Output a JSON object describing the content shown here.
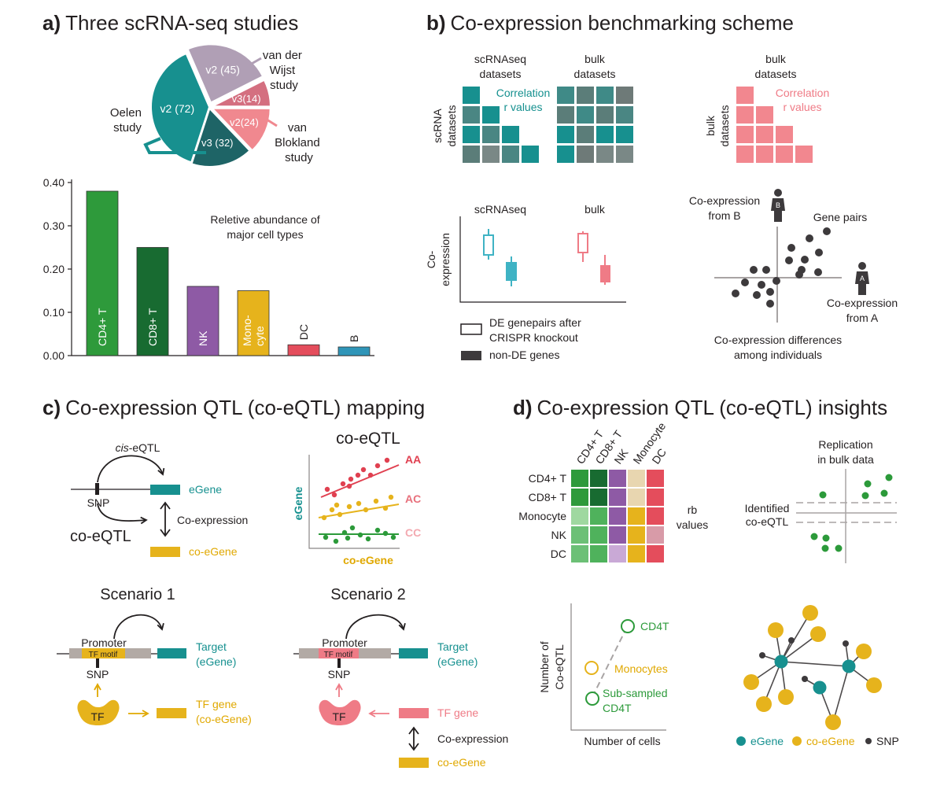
{
  "panel_a": {
    "title_letter": "a)",
    "title": "Three scRNA-seq studies",
    "pie": {
      "slices": [
        {
          "label": "v2 (72)",
          "value": 72,
          "color": "#17908f"
        },
        {
          "label": "v2 (45)",
          "value": 45,
          "color": "#b09fb5"
        },
        {
          "label": "v3(14)",
          "value": 14,
          "color": "#d46f80"
        },
        {
          "label": "v2(24)",
          "value": 24,
          "color": "#f0888f"
        },
        {
          "label": "v3 (32)",
          "value": 32,
          "color": "#1e6466"
        }
      ],
      "study_oelen": [
        "Oelen",
        "study"
      ],
      "study_vanderwijst": [
        "van der",
        "Wijst",
        "study"
      ],
      "study_vanblokland": [
        "van",
        "Blokland",
        "study"
      ]
    }
  },
  "chart_data": {
    "type": "bar",
    "title": "Reletive abundance of major cell types",
    "title_lines": [
      "Reletive abundance of",
      "major cell types"
    ],
    "categories": [
      "CD4+ T",
      "CD8+ T",
      "NK",
      "Mono-cyte",
      "DC",
      "B"
    ],
    "category_lines": [
      [
        "CD4+ T"
      ],
      [
        "CD8+ T"
      ],
      [
        "NK"
      ],
      [
        "Mono-",
        "cyte"
      ],
      [
        "DC"
      ],
      [
        "B"
      ]
    ],
    "values": [
      0.38,
      0.25,
      0.16,
      0.15,
      0.025,
      0.02
    ],
    "colors": [
      "#2e9a3b",
      "#186b31",
      "#8e5aa5",
      "#e6b31c",
      "#e44d5c",
      "#2f95b8"
    ],
    "yticks": [
      "0.00",
      "0.10",
      "0.20",
      "0.30",
      "0.40"
    ],
    "ylim": [
      0,
      0.4
    ],
    "xlabel": "",
    "ylabel": ""
  },
  "panel_b": {
    "title_letter": "b)",
    "title": "Co-expression benchmarking scheme",
    "sc_header": [
      "scRNAseq",
      "datasets"
    ],
    "bulk_header": [
      "bulk",
      "datasets"
    ],
    "bulk_header2": [
      "bulk",
      "datasets"
    ],
    "scrna_side": [
      "scRNA",
      "datasets"
    ],
    "bulk_side": [
      "bulk",
      "datasets"
    ],
    "corr_teal": [
      "Correlation",
      "r values"
    ],
    "corr_pink": [
      "Correlation",
      "r values"
    ],
    "box_sc_label": "scRNAseq",
    "box_bulk_label": "bulk",
    "coexp_axis": [
      "Co-",
      "expression"
    ],
    "legend_de": [
      "DE genepairs after",
      "CRISPR knockout"
    ],
    "legend_nonde": "non-DE genes",
    "coexp_b": [
      "Co-expression",
      "from B"
    ],
    "coexp_a": [
      "Co-expression",
      "from A"
    ],
    "gene_pairs": "Gene pairs",
    "person_a": "A",
    "person_b": "B",
    "diff_caption": [
      "Co-expression differences",
      "among individuals"
    ]
  },
  "panel_c": {
    "title_letter": "c)",
    "title": "Co-expression QTL (co-eQTL) mapping",
    "cis_eqtl_cis": "cis",
    "cis_eqtl_rest": "-eQTL",
    "snp": "SNP",
    "egene": "eGene",
    "coexpression": "Co-expression",
    "coeqtl": "co-eQTL",
    "coegene": "co-eGene",
    "scatter_title": "co-eQTL",
    "scatter_y": "eGene",
    "scatter_x": "co-eGene",
    "genotypes": [
      "AA",
      "AC",
      "CC"
    ],
    "scenario1": "Scenario 1",
    "scenario2": "Scenario 2",
    "promoter": "Promoter",
    "tf_motif": "TF motif",
    "target": [
      "Target",
      "(eGene)"
    ],
    "tf": "TF",
    "tf_gene_coegene": [
      "TF gene",
      "(co-eGene)"
    ],
    "tf_gene": "TF gene",
    "legend_coexpression": "Co-expression",
    "legend_coegene": "co-eGene"
  },
  "panel_d": {
    "title_letter": "d)",
    "title": "Co-expression QTL (co-eQTL) insights",
    "heatmap_cols": [
      "CD4+ T",
      "CD8+ T",
      "NK",
      "Monocyte",
      "DC"
    ],
    "heatmap_rows": [
      "CD4+ T",
      "CD8+ T",
      "Monocyte",
      "NK",
      "DC"
    ],
    "heatmap_colors": [
      [
        "#2e9a3b",
        "#186b31",
        "#8e5aa5",
        "#e8d6b0",
        "#e44d5c"
      ],
      [
        "#2e9a3b",
        "#186b31",
        "#8e5aa5",
        "#e8d6b0",
        "#e44d5c"
      ],
      [
        "#9fd8a0",
        "#4fb25c",
        "#8e5aa5",
        "#e6b31c",
        "#e44d5c"
      ],
      [
        "#6cc076",
        "#4fb25c",
        "#8e5aa5",
        "#e6b31c",
        "#d89ba8"
      ],
      [
        "#6cc076",
        "#4fb25c",
        "#c9a9d6",
        "#e6b31c",
        "#e44d5c"
      ]
    ],
    "rb_values": [
      "rb",
      "values"
    ],
    "replication": [
      "Replication",
      "in bulk data"
    ],
    "identified": [
      "Identified",
      "co-eQTL"
    ],
    "y_axis": [
      "Number of",
      "Co-eQTL"
    ],
    "x_axis": "Number of cells",
    "cd4t": "CD4T",
    "monocytes": "Monocytes",
    "subsampled": [
      "Sub-sampled",
      "CD4T"
    ],
    "legend_egene": "eGene",
    "legend_coegene": "co-eGene",
    "legend_snp": "SNP"
  }
}
